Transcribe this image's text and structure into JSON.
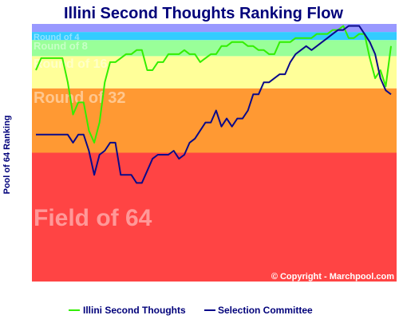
{
  "chart_data": {
    "type": "line",
    "title": "Illini Second Thoughts Ranking Flow",
    "ylabel": "Pool of 64 Ranking",
    "copyright": "© Copyright - Marchpool.com",
    "ylim": [
      64,
      1
    ],
    "bands": [
      {
        "label": "Field of 64",
        "from": 64,
        "to": 33,
        "color": "#ff4444"
      },
      {
        "label": "Round of 32",
        "from": 32,
        "to": 17,
        "color": "#ff9933"
      },
      {
        "label": "Round of 16",
        "from": 16,
        "to": 9,
        "color": "#ffff99"
      },
      {
        "label": "Round of 8",
        "from": 8,
        "to": 5,
        "color": "#99ff99"
      },
      {
        "label": "Round of 4",
        "from": 4,
        "to": 3,
        "color": "#33ccff"
      },
      {
        "label": "",
        "from": 2,
        "to": 1,
        "color": "#9999ff"
      }
    ],
    "x": [
      1,
      2,
      3,
      4,
      5,
      6,
      7,
      8,
      9,
      10,
      11,
      12,
      13,
      14,
      15,
      16,
      17,
      18,
      19,
      20,
      21,
      22,
      23,
      24,
      25,
      26,
      27,
      28,
      29,
      30,
      31,
      32,
      33,
      34,
      35,
      36,
      37,
      38,
      39,
      40,
      41,
      42,
      43,
      44,
      45,
      46,
      47,
      48,
      49,
      50,
      51,
      52,
      53,
      54,
      55,
      56,
      57,
      58,
      59,
      60,
      61,
      62,
      63,
      64,
      65,
      66,
      67,
      68
    ],
    "series": [
      {
        "name": "Illini Second Thoughts",
        "color": "#33ee00",
        "values": [
          12,
          9,
          9,
          9,
          9,
          9,
          15,
          23,
          20,
          20,
          27,
          30,
          25,
          15,
          10,
          10,
          9,
          8,
          8,
          7,
          7,
          12,
          12,
          10,
          10,
          8,
          8,
          8,
          7,
          8,
          8,
          10,
          9,
          8,
          8,
          6,
          6,
          5,
          5,
          5,
          6,
          6,
          7,
          7,
          8,
          8,
          5,
          5,
          5,
          4,
          4,
          4,
          4,
          3,
          3,
          3,
          2,
          2,
          1,
          4,
          4,
          3,
          3,
          9,
          14,
          12,
          16,
          6
        ]
      },
      {
        "name": "Selection Committee",
        "color": "#0a0a8a",
        "values": [
          28,
          28,
          28,
          28,
          28,
          28,
          28,
          30,
          28,
          28,
          32,
          38,
          33,
          32,
          30,
          30,
          38,
          38,
          38,
          40,
          40,
          37,
          34,
          33,
          33,
          33,
          32,
          34,
          33,
          30,
          29,
          27,
          25,
          25,
          22,
          26,
          24,
          26,
          24,
          24,
          22,
          18,
          18,
          15,
          15,
          14,
          13,
          13,
          10,
          8,
          7,
          6,
          7,
          6,
          5,
          4,
          3,
          2,
          2,
          1,
          1,
          1,
          3,
          5,
          8,
          14,
          17,
          18
        ]
      }
    ]
  }
}
